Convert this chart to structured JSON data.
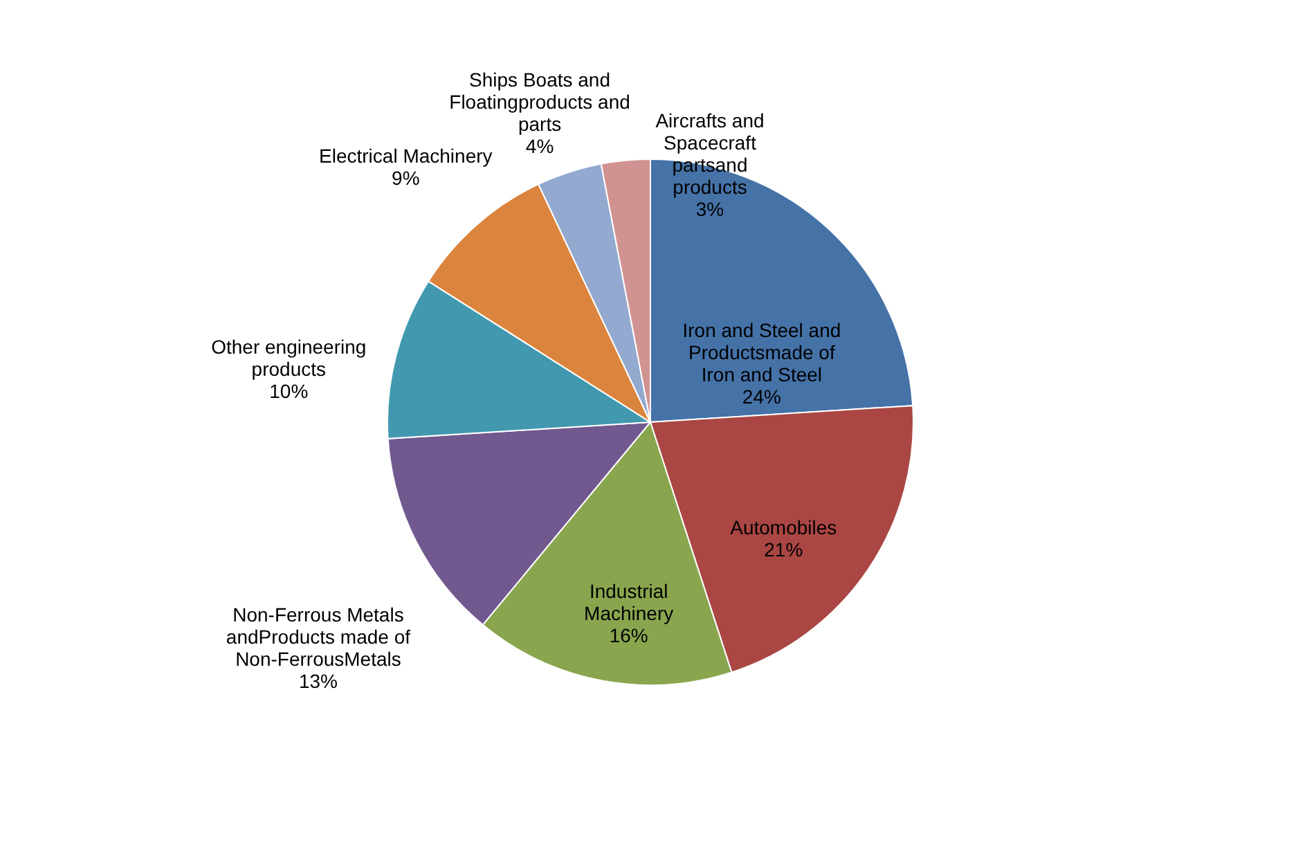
{
  "chart_data": {
    "type": "pie",
    "categories": [
      "Iron and Steel and Productsmade of Iron and Steel",
      "Automobiles",
      "Industrial Machinery",
      "Non-Ferrous Metals andProducts made of Non-FerrousMetals",
      "Other engineering products",
      "Electrical Machinery",
      "Ships Boats and Floatingproducts and parts",
      "Aircrafts and Spacecraft partsand products"
    ],
    "values": [
      24,
      21,
      16,
      13,
      10,
      9,
      4,
      3
    ],
    "value_labels": [
      "24%",
      "21%",
      "16%",
      "13%",
      "10%",
      "9%",
      "4%",
      "3%"
    ],
    "colors": [
      "#4572a7",
      "#aa4643",
      "#89a54e",
      "#71588f",
      "#4198af",
      "#db843d",
      "#93a9cf",
      "#d19392"
    ],
    "legend": false
  }
}
